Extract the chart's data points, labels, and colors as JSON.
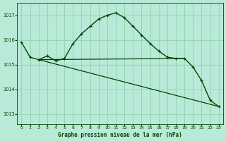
{
  "title": "Graphe pression niveau de la mer (hPa)",
  "xlim": [
    -0.5,
    23.5
  ],
  "ylim": [
    1012.6,
    1017.5
  ],
  "yticks": [
    1013,
    1014,
    1015,
    1016,
    1017
  ],
  "xticks": [
    0,
    1,
    2,
    3,
    4,
    5,
    6,
    7,
    8,
    9,
    10,
    11,
    12,
    13,
    14,
    15,
    16,
    17,
    18,
    19,
    20,
    21,
    22,
    23
  ],
  "bg_color": "#b8ead8",
  "grid_color": "#88ccaa",
  "line_color": "#004400",
  "line1_x": [
    0,
    1,
    2,
    3,
    4,
    5,
    6,
    7,
    8,
    9,
    10,
    11,
    12,
    13,
    14,
    15,
    16,
    17,
    18,
    19,
    20,
    21,
    22,
    23
  ],
  "line1_y": [
    1015.9,
    1015.3,
    1015.2,
    1015.35,
    1015.15,
    1015.25,
    1015.85,
    1016.25,
    1016.55,
    1016.85,
    1017.0,
    1017.1,
    1016.9,
    1016.55,
    1016.2,
    1015.85,
    1015.55,
    1015.3,
    1015.25,
    1015.25,
    1014.9,
    1014.35,
    1013.55,
    1013.3
  ],
  "line2_x": [
    2,
    23
  ],
  "line2_y": [
    1015.2,
    1013.3
  ],
  "line3_x": [
    2,
    19
  ],
  "line3_y": [
    1015.2,
    1015.25
  ],
  "xlabel_color": "#004400",
  "tick_color": "#004400"
}
